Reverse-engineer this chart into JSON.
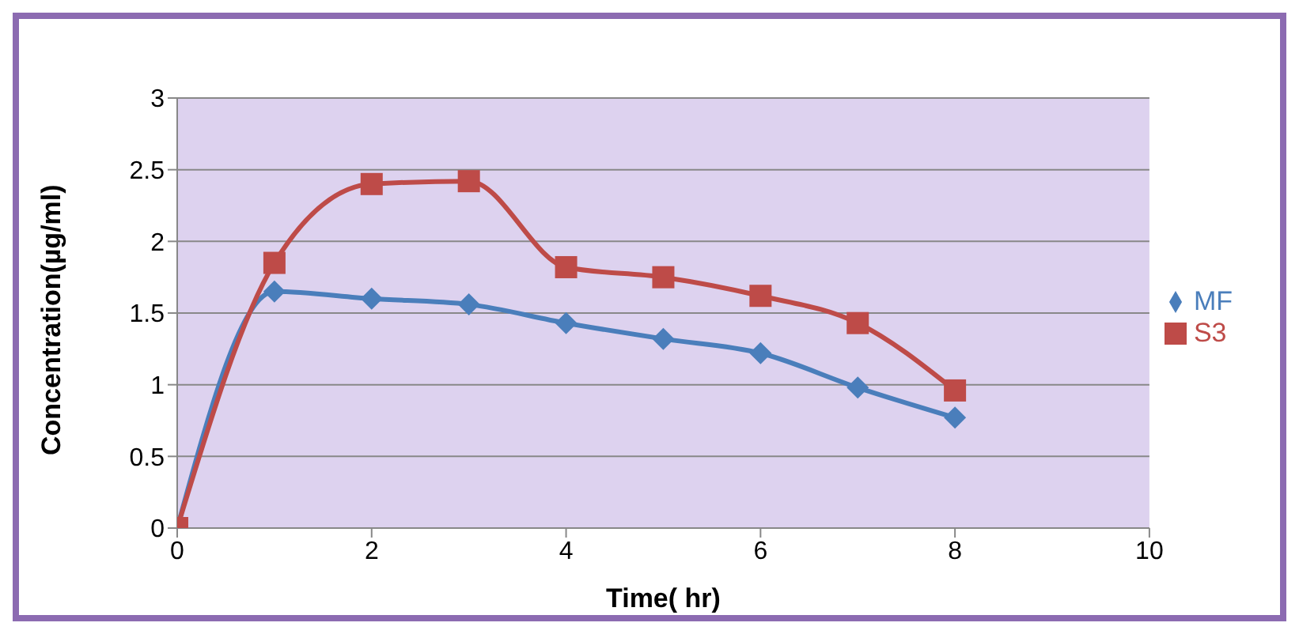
{
  "chart_data": {
    "type": "line",
    "xlabel": "Time( hr)",
    "ylabel": "Concentration(µg/ml)",
    "x": [
      0,
      1,
      2,
      3,
      4,
      5,
      6,
      7,
      8
    ],
    "xlim": [
      0,
      10
    ],
    "xticks": [
      0,
      2,
      4,
      6,
      8,
      10
    ],
    "ylim": [
      0,
      3
    ],
    "yticks": [
      0,
      0.5,
      1,
      1.5,
      2,
      2.5,
      3
    ],
    "grid": "y",
    "legend": "right",
    "series": [
      {
        "name": "MF",
        "color": "#4a7ebb",
        "marker": "diamond",
        "values": [
          0,
          1.65,
          1.6,
          1.56,
          1.43,
          1.32,
          1.22,
          0.98,
          0.77
        ]
      },
      {
        "name": "S3",
        "color": "#be4b48",
        "marker": "square",
        "values": [
          0,
          1.85,
          2.4,
          2.42,
          1.82,
          1.75,
          1.62,
          1.43,
          0.96
        ]
      }
    ]
  }
}
